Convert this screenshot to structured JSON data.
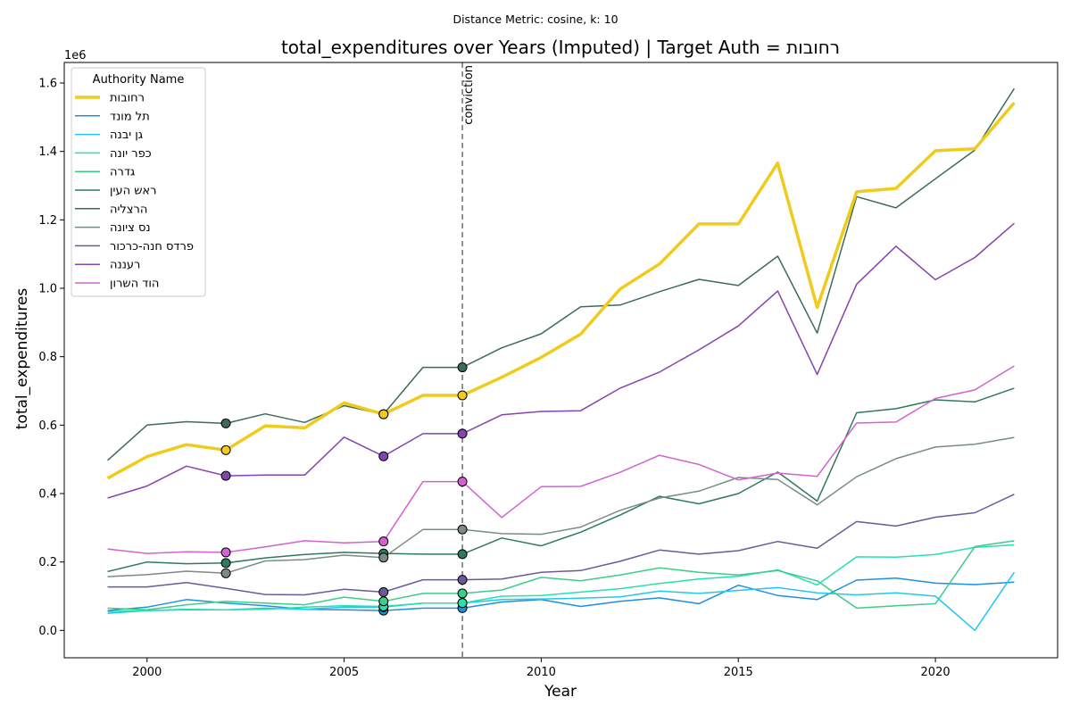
{
  "suptitle": "Distance Metric: cosine, k: 10",
  "chart_data": {
    "type": "line",
    "title": "total_expenditures over Years (Imputed) | Target Auth = רחובות",
    "xlabel": "Year",
    "ylabel": "total_expenditures",
    "y_offset_label": "1e6",
    "xlim": [
      1997.9,
      2023.1
    ],
    "ylim": [
      -0.08,
      1.66
    ],
    "x_ticks": [
      2000,
      2005,
      2010,
      2015,
      2020
    ],
    "y_ticks": [
      0.0,
      0.2,
      0.4,
      0.6,
      0.8,
      1.0,
      1.2,
      1.4,
      1.6
    ],
    "y_tick_labels": [
      "0.0",
      "0.2",
      "0.4",
      "0.6",
      "0.8",
      "1.0",
      "1.2",
      "1.4",
      "1.6"
    ],
    "grid": false,
    "legend": {
      "title": "Authority Name",
      "placement": "top-left"
    },
    "vline": {
      "x": 2008,
      "label": "conviction",
      "color": "#777777"
    },
    "x": [
      1999,
      2000,
      2001,
      2002,
      2003,
      2004,
      2005,
      2006,
      2007,
      2008,
      2009,
      2010,
      2011,
      2012,
      2013,
      2014,
      2015,
      2016,
      2017,
      2018,
      2019,
      2020,
      2021,
      2022
    ],
    "series": [
      {
        "name": "רחובות",
        "color": "#f1cb1c",
        "width": 3.5,
        "target": true,
        "values": [
          0.445,
          0.508,
          0.543,
          0.527,
          0.598,
          0.592,
          0.665,
          0.632,
          0.687,
          0.687,
          0.74,
          0.798,
          0.866,
          0.998,
          1.071,
          1.188,
          1.188,
          1.366,
          0.944,
          1.282,
          1.292,
          1.402,
          1.408,
          1.542
        ],
        "markers": [
          {
            "x": 2002,
            "y": 0.527
          },
          {
            "x": 2006,
            "y": 0.632
          },
          {
            "x": 2008,
            "y": 0.687
          }
        ]
      },
      {
        "name": "תל מונד",
        "color": "#1f8fe0",
        "width": 1.5,
        "values": [
          0.058,
          0.068,
          0.09,
          0.08,
          0.072,
          0.062,
          0.06,
          0.058,
          0.065,
          0.065,
          0.083,
          0.09,
          0.07,
          0.085,
          0.095,
          0.078,
          0.132,
          0.102,
          0.09,
          0.147,
          0.153,
          0.138,
          0.134,
          0.141
        ],
        "markers": [
          {
            "x": 2006,
            "y": 0.058
          },
          {
            "x": 2008,
            "y": 0.065
          }
        ]
      },
      {
        "name": "גן יבנה",
        "color": "#22c7ef",
        "width": 1.5,
        "values": [
          0.05,
          0.058,
          0.06,
          0.06,
          0.065,
          0.062,
          0.068,
          0.068,
          0.08,
          0.08,
          0.09,
          0.092,
          0.094,
          0.098,
          0.115,
          0.108,
          0.117,
          0.125,
          0.11,
          0.104,
          0.11,
          0.1,
          0.0,
          0.17
        ],
        "markers": [
          {
            "x": 2006,
            "y": 0.068
          },
          {
            "x": 2008,
            "y": 0.08
          }
        ]
      },
      {
        "name": "כפר יונה",
        "color": "#27e0b0",
        "width": 1.5,
        "values": [
          0.055,
          0.058,
          0.062,
          0.06,
          0.062,
          0.068,
          0.072,
          0.07,
          0.08,
          0.08,
          0.1,
          0.102,
          0.112,
          0.122,
          0.137,
          0.15,
          0.158,
          0.177,
          0.133,
          0.215,
          0.214,
          0.222,
          0.243,
          0.25
        ],
        "markers": [
          {
            "x": 2006,
            "y": 0.07
          },
          {
            "x": 2008,
            "y": 0.08
          }
        ]
      },
      {
        "name": "גדרה",
        "color": "#3dcc8a",
        "width": 1.5,
        "values": [
          0.065,
          0.06,
          0.075,
          0.085,
          0.08,
          0.075,
          0.097,
          0.085,
          0.108,
          0.108,
          0.118,
          0.155,
          0.145,
          0.162,
          0.183,
          0.17,
          0.162,
          0.175,
          0.145,
          0.065,
          0.072,
          0.078,
          0.245,
          0.262
        ],
        "markers": [
          {
            "x": 2006,
            "y": 0.085
          },
          {
            "x": 2008,
            "y": 0.108
          }
        ]
      },
      {
        "name": "ראש העין",
        "color": "#2f7a5c",
        "width": 1.5,
        "values": [
          0.172,
          0.2,
          0.195,
          0.197,
          0.212,
          0.222,
          0.228,
          0.225,
          0.223,
          0.223,
          0.27,
          0.247,
          0.287,
          0.337,
          0.392,
          0.37,
          0.4,
          0.463,
          0.378,
          0.636,
          0.648,
          0.674,
          0.668,
          0.708
        ],
        "markers": [
          {
            "x": 2002,
            "y": 0.197
          },
          {
            "x": 2006,
            "y": 0.225
          },
          {
            "x": 2008,
            "y": 0.223
          }
        ]
      },
      {
        "name": "הרצליה",
        "color": "#3e6b59",
        "width": 1.5,
        "values": [
          0.497,
          0.6,
          0.61,
          0.605,
          0.633,
          0.608,
          0.657,
          0.632,
          0.769,
          0.769,
          0.826,
          0.867,
          0.946,
          0.951,
          0.99,
          1.026,
          1.008,
          1.094,
          0.869,
          1.268,
          1.235,
          1.32,
          1.404,
          1.584
        ],
        "markers": [
          {
            "x": 2002,
            "y": 0.605
          },
          {
            "x": 2006,
            "y": 0.632
          },
          {
            "x": 2008,
            "y": 0.769
          }
        ]
      },
      {
        "name": "נס ציונה",
        "color": "#7a8c84",
        "width": 1.5,
        "values": [
          0.157,
          0.163,
          0.173,
          0.167,
          0.203,
          0.207,
          0.22,
          0.213,
          0.295,
          0.295,
          0.283,
          0.281,
          0.302,
          0.351,
          0.387,
          0.407,
          0.447,
          0.441,
          0.367,
          0.449,
          0.502,
          0.536,
          0.544,
          0.564
        ],
        "markers": [
          {
            "x": 2002,
            "y": 0.167
          },
          {
            "x": 2006,
            "y": 0.213
          },
          {
            "x": 2008,
            "y": 0.295
          }
        ]
      },
      {
        "name": "פרדס חנה-כרכור",
        "color": "#6b5a9a",
        "width": 1.5,
        "values": [
          0.127,
          0.127,
          0.14,
          0.123,
          0.105,
          0.104,
          0.12,
          0.112,
          0.148,
          0.148,
          0.15,
          0.17,
          0.175,
          0.202,
          0.235,
          0.223,
          0.233,
          0.26,
          0.24,
          0.318,
          0.305,
          0.331,
          0.344,
          0.398
        ],
        "markers": [
          {
            "x": 2006,
            "y": 0.112
          },
          {
            "x": 2008,
            "y": 0.148
          }
        ]
      },
      {
        "name": "רעננה",
        "color": "#8444b0",
        "width": 1.5,
        "values": [
          0.387,
          0.422,
          0.48,
          0.452,
          0.454,
          0.454,
          0.565,
          0.509,
          0.575,
          0.575,
          0.63,
          0.64,
          0.642,
          0.708,
          0.755,
          0.82,
          0.89,
          0.992,
          0.748,
          1.012,
          1.123,
          1.025,
          1.09,
          1.19
        ],
        "markers": [
          {
            "x": 2002,
            "y": 0.452
          },
          {
            "x": 2006,
            "y": 0.509
          },
          {
            "x": 2008,
            "y": 0.575
          }
        ]
      },
      {
        "name": "הוד השרון",
        "color": "#d262d0",
        "width": 1.5,
        "values": [
          0.238,
          0.225,
          0.23,
          0.228,
          0.244,
          0.262,
          0.256,
          0.26,
          0.435,
          0.435,
          0.33,
          0.42,
          0.421,
          0.462,
          0.512,
          0.485,
          0.44,
          0.46,
          0.45,
          0.606,
          0.609,
          0.678,
          0.703,
          0.773
        ],
        "markers": [
          {
            "x": 2002,
            "y": 0.228
          },
          {
            "x": 2006,
            "y": 0.26
          },
          {
            "x": 2008,
            "y": 0.435
          }
        ]
      }
    ]
  }
}
